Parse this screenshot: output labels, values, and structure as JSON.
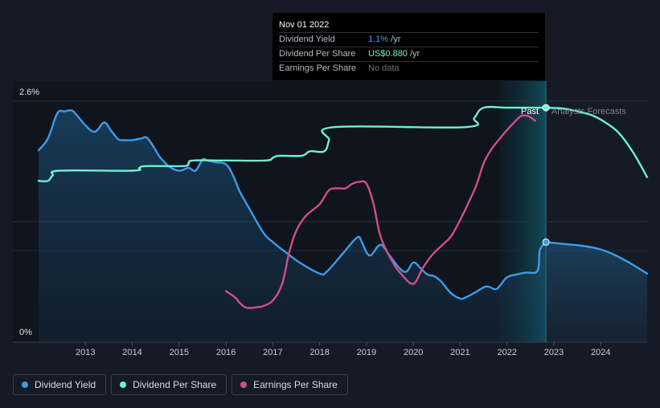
{
  "tooltip": {
    "date": "Nov 01 2022",
    "rows": [
      {
        "label": "Dividend Yield",
        "value": "1.1%",
        "unit": " /yr"
      },
      {
        "label": "Dividend Per Share",
        "value": "US$0.880",
        "unit": " /yr"
      },
      {
        "label": "Earnings Per Share",
        "value": "No data",
        "unit": ""
      }
    ]
  },
  "legend": {
    "items": [
      {
        "label": "Dividend Yield",
        "color": "#3d9be9"
      },
      {
        "label": "Dividend Per Share",
        "color": "#6ef0d2"
      },
      {
        "label": "Earnings Per Share",
        "color": "#d14d8c"
      }
    ]
  },
  "regions": {
    "past": "Past",
    "forecast": "Analysts Forecasts"
  },
  "chart_data": {
    "type": "line",
    "y_ticks": [
      "2.6%",
      "0%"
    ],
    "ylim": [
      0,
      2.6
    ],
    "xlim": [
      2012.0,
      2024.99
    ],
    "x_tick_labels": [
      "2013",
      "2014",
      "2015",
      "2016",
      "2017",
      "2018",
      "2019",
      "2020",
      "2021",
      "2022",
      "2023",
      "2024"
    ],
    "x_tick_values": [
      2013,
      2014,
      2015,
      2016,
      2017,
      2018,
      2019,
      2020,
      2021,
      2022,
      2023,
      2024
    ],
    "grid": true,
    "legend_position": "bottom-left",
    "forecast_start": 2022.83,
    "highlight_range": [
      2021.84,
      2022.83
    ],
    "series": [
      {
        "name": "Dividend Yield",
        "color": "#3d9be9",
        "area": true,
        "x": [
          2012.0,
          2012.2,
          2012.4,
          2012.55,
          2012.7,
          2012.8,
          2013.0,
          2013.2,
          2013.4,
          2013.55,
          2013.7,
          2013.8,
          2014.0,
          2014.2,
          2014.3,
          2014.4,
          2014.5,
          2014.6,
          2014.8,
          2015.0,
          2015.2,
          2015.35,
          2015.5,
          2015.6,
          2015.8,
          2016.0,
          2016.15,
          2016.3,
          2016.5,
          2016.8,
          2017.0,
          2017.3,
          2017.6,
          2018.0,
          2018.15,
          2018.5,
          2018.8,
          2018.9,
          2019.0,
          2019.1,
          2019.3,
          2019.5,
          2019.7,
          2019.85,
          2020.0,
          2020.15,
          2020.3,
          2020.45,
          2020.6,
          2020.8,
          2021.0,
          2021.1,
          2021.3,
          2021.55,
          2021.75,
          2021.85,
          2022.0,
          2022.2,
          2022.4,
          2022.65,
          2022.7,
          2022.83
        ],
        "values": [
          2.07,
          2.2,
          2.47,
          2.49,
          2.5,
          2.46,
          2.34,
          2.27,
          2.37,
          2.28,
          2.19,
          2.18,
          2.18,
          2.2,
          2.21,
          2.15,
          2.07,
          1.99,
          1.89,
          1.85,
          1.88,
          1.85,
          1.97,
          1.96,
          1.94,
          1.92,
          1.8,
          1.62,
          1.44,
          1.18,
          1.08,
          0.96,
          0.85,
          0.74,
          0.76,
          0.96,
          1.13,
          1.08,
          0.97,
          0.94,
          1.05,
          0.93,
          0.8,
          0.76,
          0.86,
          0.8,
          0.73,
          0.71,
          0.65,
          0.53,
          0.47,
          0.48,
          0.53,
          0.6,
          0.57,
          0.61,
          0.7,
          0.73,
          0.75,
          0.77,
          0.99,
          1.08
        ]
      },
      {
        "name": "Dividend Yield forecast",
        "color": "#3d9be9",
        "area": true,
        "x": [
          2022.83,
          2023.2,
          2023.6,
          2024.0,
          2024.3,
          2024.6,
          2024.99
        ],
        "values": [
          1.08,
          1.06,
          1.04,
          1.0,
          0.94,
          0.86,
          0.74
        ]
      },
      {
        "name": "Dividend Per Share",
        "color": "#6ef0d2",
        "area": false,
        "x": [
          2012.0,
          2012.2,
          2012.3,
          2012.45,
          2014.0,
          2014.15,
          2014.3,
          2015.1,
          2015.2,
          2015.3,
          2016.0,
          2016.85,
          2017.0,
          2017.1,
          2017.3,
          2017.6,
          2017.7,
          2017.8,
          2018.1,
          2018.2,
          2018.3,
          2021.1,
          2021.3,
          2021.5,
          2022.0,
          2022.5,
          2022.83
        ],
        "values": [
          1.74,
          1.74,
          1.8,
          1.85,
          1.85,
          1.88,
          1.9,
          1.9,
          1.93,
          1.96,
          1.96,
          1.96,
          1.99,
          2.01,
          2.01,
          2.01,
          2.03,
          2.06,
          2.06,
          2.18,
          2.32,
          2.32,
          2.42,
          2.53,
          2.53,
          2.53,
          2.53
        ]
      },
      {
        "name": "Dividend Per Share forecast",
        "color": "#6ef0d2",
        "area": false,
        "x": [
          2022.83,
          2023.2,
          2023.5,
          2023.8,
          2024.1,
          2024.4,
          2024.7,
          2024.99
        ],
        "values": [
          2.53,
          2.52,
          2.49,
          2.45,
          2.37,
          2.25,
          2.04,
          1.78
        ]
      },
      {
        "name": "Earnings Per Share",
        "color": "#d14d8c",
        "area": false,
        "x": [
          2016.0,
          2016.2,
          2016.3,
          2016.45,
          2016.7,
          2016.8,
          2017.0,
          2017.2,
          2017.35,
          2017.5,
          2017.7,
          2018.0,
          2018.2,
          2018.4,
          2018.55,
          2018.7,
          2018.85,
          2019.0,
          2019.15,
          2019.3,
          2019.55,
          2019.75,
          2020.0,
          2020.2,
          2020.4,
          2020.6,
          2020.8,
          2021.0,
          2021.2,
          2021.35,
          2021.5,
          2021.65,
          2021.85,
          2022.0,
          2022.15,
          2022.3,
          2022.45,
          2022.6
        ],
        "values": [
          0.55,
          0.48,
          0.42,
          0.37,
          0.38,
          0.39,
          0.45,
          0.63,
          0.97,
          1.2,
          1.36,
          1.49,
          1.64,
          1.66,
          1.66,
          1.71,
          1.73,
          1.71,
          1.49,
          1.14,
          0.87,
          0.73,
          0.63,
          0.8,
          0.94,
          1.04,
          1.14,
          1.32,
          1.53,
          1.7,
          1.93,
          2.07,
          2.2,
          2.29,
          2.37,
          2.44,
          2.44,
          2.39
        ]
      }
    ],
    "markers": [
      {
        "series": "Dividend Per Share",
        "x": 2022.83,
        "y": 2.53
      },
      {
        "series": "Dividend Yield",
        "x": 2022.83,
        "y": 1.08
      }
    ]
  }
}
